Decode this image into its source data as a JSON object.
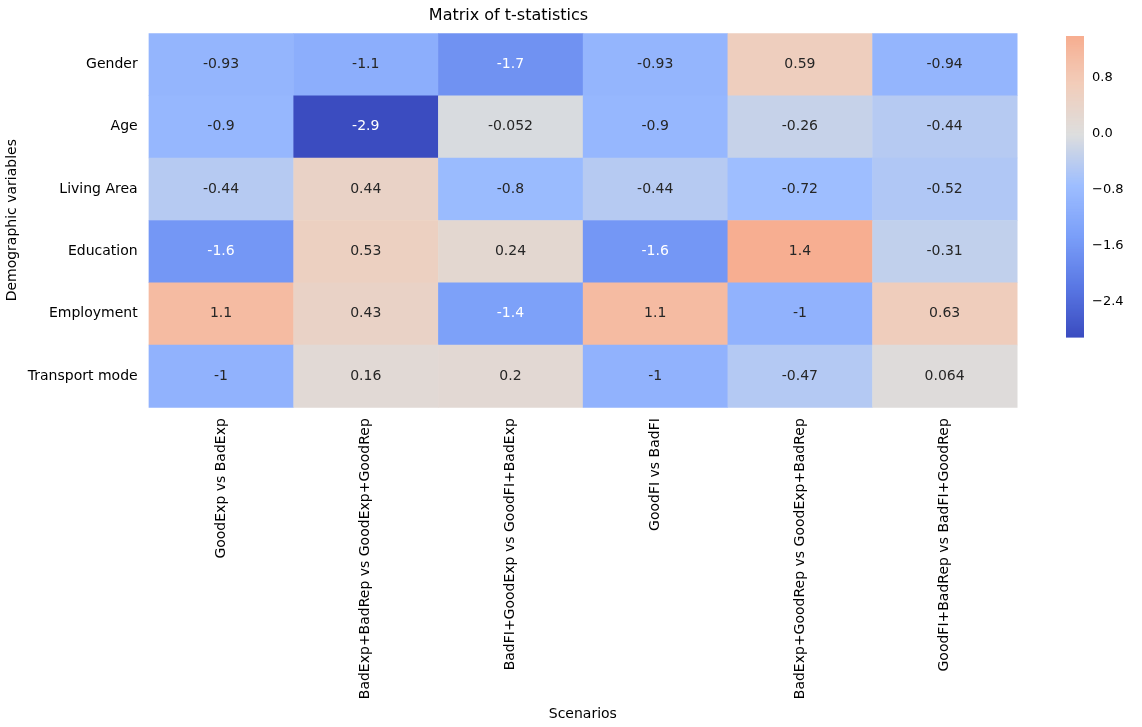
{
  "chart_data": {
    "type": "heatmap",
    "title": "Matrix of t-statistics",
    "xlabel": "Scenarios",
    "ylabel": "Demographic variables",
    "categories": [
      "GoodExp vs BadExp",
      "BadExp+BadRep vs GoodExp+GoodRep",
      "BadFI+GoodExp vs GoodFI+BadExp",
      "GoodFI vs BadFI",
      "BadExp+GoodRep vs GoodExp+BadRep",
      "GoodFI+BadRep vs BadFI+GoodRep"
    ],
    "y_categories": [
      "Gender",
      "Age",
      "Living Area",
      "Education",
      "Employment",
      "Transport mode"
    ],
    "cells": [
      [
        -0.93,
        -1.1,
        -1.7,
        -0.93,
        0.59,
        -0.94
      ],
      [
        -0.9,
        -2.9,
        -0.052,
        -0.9,
        -0.26,
        -0.44
      ],
      [
        -0.44,
        0.44,
        -0.8,
        -0.44,
        -0.72,
        -0.52
      ],
      [
        -1.6,
        0.53,
        0.24,
        -1.6,
        1.4,
        -0.31
      ],
      [
        1.1,
        0.43,
        -1.4,
        1.1,
        -1,
        0.63
      ],
      [
        -1,
        0.16,
        0.2,
        -1,
        -0.47,
        0.064
      ]
    ],
    "data_labels": true,
    "clim": [
      -2.9,
      1.4
    ],
    "cticks": [
      {
        "value": -2.4,
        "label": "−2.4"
      },
      {
        "value": -1.6,
        "label": "−1.6"
      },
      {
        "value": -0.8,
        "label": "−0.8"
      },
      {
        "value": 0,
        "label": "0.0"
      },
      {
        "value": 0.8,
        "label": "0.8"
      }
    ]
  }
}
